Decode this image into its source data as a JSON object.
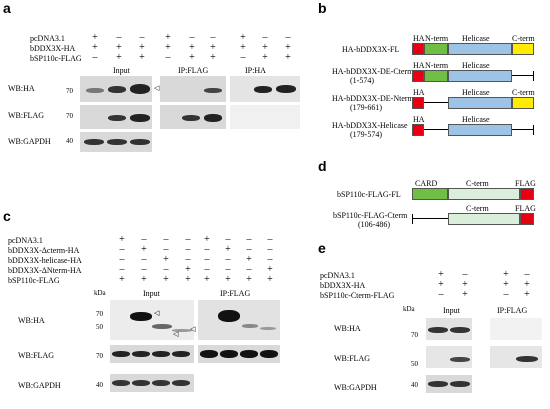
{
  "panels": [
    "a",
    "b",
    "c",
    "d",
    "e"
  ],
  "a": {
    "rows": [
      "pcDNA3.1",
      "bDDX3X-HA",
      "bSP110c-FLAG"
    ],
    "signs": [
      [
        "+",
        "–",
        "–",
        "+",
        "–",
        "–",
        "+",
        "–",
        "–"
      ],
      [
        "+",
        "+",
        "+",
        "+",
        "+",
        "+",
        "+",
        "+",
        "+"
      ],
      [
        "–",
        "+",
        "+",
        "–",
        "+",
        "+",
        "–",
        "+",
        "+"
      ]
    ],
    "groups": [
      "Input",
      "IP:FLAG",
      "IP:HA"
    ],
    "blots": [
      "WB:HA",
      "WB:FLAG",
      "WB:GAPDH"
    ],
    "mw_ha": "70",
    "mw_flag": "70",
    "mw_gapdh": "40"
  },
  "b": {
    "constructs": [
      {
        "name": "HA-bDDX3X-FL",
        "range": ""
      },
      {
        "name": "HA-bDDX3X-DE-Cterm",
        "range": "(1-574)"
      },
      {
        "name": "HA-bDDX3X-DE-Nterm",
        "range": "(179-661)"
      },
      {
        "name": "HA-bDDX3X-Helicase",
        "range": "(179-574)"
      }
    ],
    "domain_labels": {
      "ha": "HA",
      "nterm": "N-term",
      "helicase": "Helicase",
      "cterm": "C-term"
    }
  },
  "c": {
    "rows": [
      "pcDNA3.1",
      "bDDX3X-Δcterm-HA",
      "bDDX3X-helicase-HA",
      "bDDX3X-ΔNterm-HA",
      "bSP110c-FLAG"
    ],
    "signs": [
      [
        "+",
        "–",
        "–",
        "–",
        "+",
        "–",
        "–",
        "–"
      ],
      [
        "–",
        "+",
        "–",
        "–",
        "–",
        "+",
        "–",
        "–"
      ],
      [
        "–",
        "–",
        "+",
        "–",
        "–",
        "–",
        "+",
        "–"
      ],
      [
        "–",
        "–",
        "–",
        "+",
        "–",
        "–",
        "–",
        "+"
      ],
      [
        "+",
        "+",
        "+",
        "+",
        "+",
        "+",
        "+",
        "+"
      ]
    ],
    "kda": "kDa",
    "groups": [
      "Input",
      "IP:FLAG"
    ],
    "blots": [
      "WB:HA",
      "WB:FLAG",
      "WB:GAPDH"
    ],
    "mw_ha": [
      "70",
      "50"
    ],
    "mw_flag": "70",
    "mw_gapdh": "40"
  },
  "d": {
    "constructs": [
      {
        "name": "bSP110c-FLAG-FL",
        "range": ""
      },
      {
        "name": "bSP110c-FLAG-Cterm",
        "range": "(106-486)"
      }
    ],
    "domain_labels": {
      "card": "CARD",
      "cterm": "C-term",
      "flag": "FLAG"
    }
  },
  "e": {
    "rows": [
      "pcDNA3.1",
      "bDDX3X-HA",
      "bSP110c-Cterm-FLAG"
    ],
    "signs": [
      [
        "+",
        "–",
        "+",
        "–"
      ],
      [
        "+",
        "+",
        "+",
        "+"
      ],
      [
        "–",
        "+",
        "–",
        "+"
      ]
    ],
    "kda": "kDa",
    "groups": [
      "Input",
      "IP:FLAG"
    ],
    "blots": [
      "WB:HA",
      "WB:FLAG",
      "WB:GAPDH"
    ],
    "mw_ha": "70",
    "mw_flag": "50",
    "mw_gapdh": "40"
  },
  "colors": {
    "ha": "#e60012",
    "nterm": "#70bf44",
    "helicase": "#9dc3e6",
    "cterm": "#ffec00",
    "card": "#70bf44",
    "cterm_light": "#dbeedb",
    "flag": "#e60012",
    "blot_bg": "#d9d9d9"
  }
}
